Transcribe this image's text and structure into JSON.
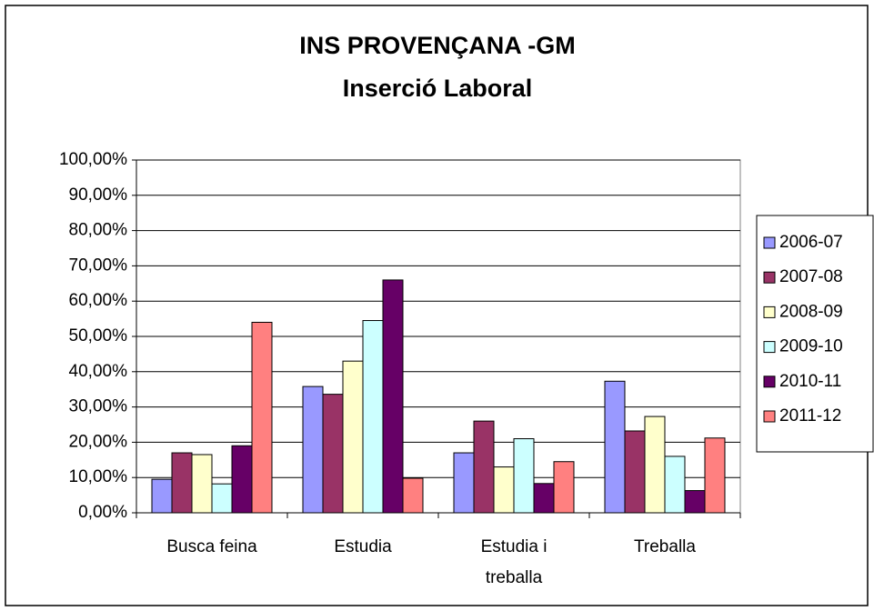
{
  "chart_data": {
    "type": "bar",
    "title": "INS PROVENÇANA -GM",
    "subtitle": "Inserció Laboral",
    "categories": [
      "Busca feina",
      "Estudia",
      "Estudia i treballa",
      "Treballa"
    ],
    "series": [
      {
        "name": "2006-07",
        "color": "#9999ff",
        "values": [
          9.5,
          35.8,
          17,
          37.3
        ]
      },
      {
        "name": "2007-08",
        "color": "#993366",
        "values": [
          17,
          33.6,
          26,
          23.2
        ]
      },
      {
        "name": "2008-09",
        "color": "#ffffcc",
        "values": [
          16.5,
          43,
          13,
          27.3
        ]
      },
      {
        "name": "2009-10",
        "color": "#ccffff",
        "values": [
          8.2,
          54.5,
          21,
          16
        ]
      },
      {
        "name": "2010-11",
        "color": "#660066",
        "values": [
          19,
          66,
          8.3,
          6.3
        ]
      },
      {
        "name": "2011-12",
        "color": "#ff8080",
        "values": [
          54,
          9.8,
          14.5,
          21.2
        ]
      }
    ],
    "ylim": [
      0,
      100
    ],
    "yticks": [
      {
        "value": 0,
        "label": "0,00%"
      },
      {
        "value": 10,
        "label": "10,00%"
      },
      {
        "value": 20,
        "label": "20,00%"
      },
      {
        "value": 30,
        "label": "30,00%"
      },
      {
        "value": 40,
        "label": "40,00%"
      },
      {
        "value": 50,
        "label": "50,00%"
      },
      {
        "value": 60,
        "label": "60,00%"
      },
      {
        "value": 70,
        "label": "70,00%"
      },
      {
        "value": 80,
        "label": "80,00%"
      },
      {
        "value": 90,
        "label": "90,00%"
      },
      {
        "value": 100,
        "label": "100,00%"
      }
    ],
    "grid": true,
    "legend": "right"
  }
}
